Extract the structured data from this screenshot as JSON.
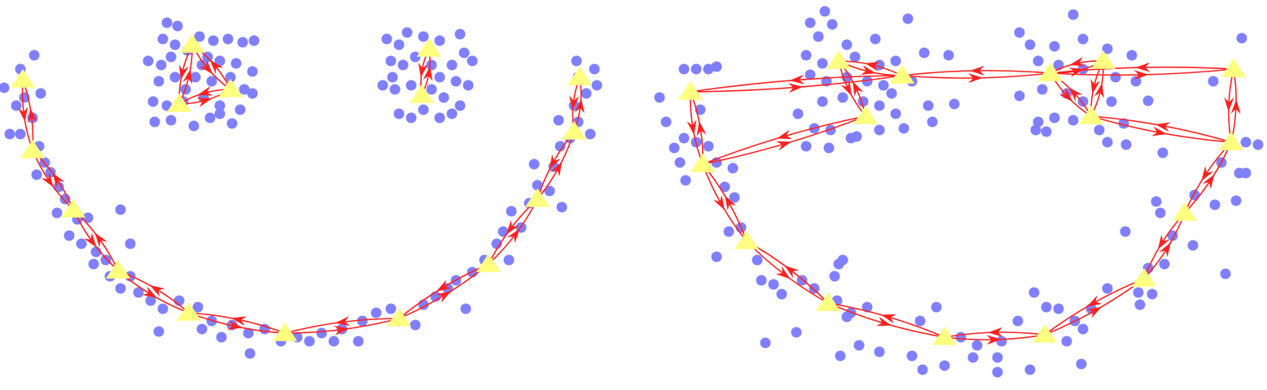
{
  "chart_data": [
    {
      "type": "scatter",
      "xlim": [
        0,
        778
      ],
      "ylim": [
        480,
        0
      ],
      "series": [
        {
          "color": "#8080ff",
          "marker": "circle",
          "x": [
            205,
            218,
            200,
            215,
            245,
            262,
            280,
            298,
            312,
            182,
            198,
            210,
            230,
            255,
            270,
            290,
            310,
            195,
            215,
            240,
            260,
            283,
            300,
            188,
            205,
            225,
            250,
            270,
            295,
            310,
            190,
            210,
            238,
            258,
            285,
            270,
            228,
            248,
            475,
            490,
            500,
            520,
            540,
            565,
            580,
            570,
            555,
            480,
            495,
            510,
            540,
            560,
            575,
            470,
            485,
            505,
            530,
            545,
            565,
            490,
            505,
            520,
            540,
            555,
            482,
            530,
            25,
            42,
            5,
            20,
            30,
            50,
            12,
            25,
            40,
            48,
            55,
            62,
            45,
            72,
            80,
            70,
            95,
            108,
            85,
            100,
            118,
            115,
            130,
            135,
            148,
            160,
            170,
            185,
            200,
            195,
            220,
            243,
            248,
            260,
            272,
            285,
            305,
            307,
            325,
            345,
            365,
            380,
            395,
            410,
            420,
            440,
            445,
            462,
            480,
            510,
            520,
            535,
            550,
            572,
            560,
            580,
            595,
            610,
            625,
            618,
            640,
            628,
            650,
            660,
            675,
            690,
            656,
            680,
            688,
            700,
            686,
            710,
            725,
            705,
            720,
            733,
            730,
            708,
            710,
            148,
            160
          ],
          "values": [
            28,
            32,
            48,
            55,
            45,
            50,
            48,
            52,
            50,
            75,
            80,
            70,
            62,
            70,
            75,
            78,
            88,
            100,
            95,
            95,
            100,
            95,
            110,
            125,
            130,
            125,
            120,
            130,
            135,
            115,
            150,
            148,
            155,
            145,
            152,
            140,
            110,
            80,
            48,
            55,
            40,
            45,
            50,
            42,
            75,
            65,
            80,
            75,
            80,
            70,
            95,
            100,
            105,
            105,
            110,
            105,
            110,
            120,
            130,
            140,
            145,
            135,
            145,
            140,
            95,
            80,
            85,
            68,
            108,
            130,
            120,
            115,
            165,
            165,
            145,
            180,
            200,
            212,
            215,
            230,
            245,
            262,
            270,
            268,
            290,
            300,
            310,
            325,
            320,
            340,
            355,
            340,
            360,
            370,
            380,
            408,
            370,
            378,
            405,
            395,
            415,
            400,
            410,
            435,
            405,
            420,
            415,
            420,
            410,
            420,
            405,
            420,
            395,
            385,
            380,
            400,
            375,
            365,
            355,
            380,
            345,
            335,
            320,
            300,
            320,
            285,
            280,
            260,
            250,
            228,
            235,
            255,
            202,
            205,
            180,
            170,
            148,
            150,
            165,
            130,
            115,
            105,
            85,
            75,
            95,
            258,
            300
          ]
        },
        {
          "color": "#ffff80",
          "marker": "triangle",
          "line_color": "#ff2020",
          "x": [
            28,
            40,
            90,
            145,
            232,
            350,
            490,
            600,
            660,
            705,
            712,
            null,
            236,
            283,
            220,
            236,
            null,
            527,
            518
          ],
          "values": [
            98,
            185,
            258,
            333,
            385,
            410,
            392,
            325,
            245,
            162,
            95,
            null,
            55,
            110,
            128,
            55,
            null,
            60,
            117
          ]
        }
      ]
    },
    {
      "type": "scatter",
      "xlim": [
        778,
        1556
      ],
      "ylim": [
        480,
        0
      ],
      "series": [
        {
          "color": "#8080ff",
          "marker": "circle",
          "x": [
            995,
            1013,
            1022,
            1005,
            1040,
            1075,
            1115,
            990,
            1010,
            1050,
            1080,
            1100,
            1135,
            1165,
            995,
            1015,
            1040,
            1065,
            1085,
            1120,
            1140,
            1010,
            1035,
            1060,
            1080,
            1100,
            980,
            1000,
            1020,
            1045,
            1080,
            1110,
            1145,
            1172,
            990,
            1018,
            1052,
            1252,
            1265,
            1295,
            1318,
            1330,
            1360,
            1390,
            1275,
            1300,
            1330,
            1370,
            1395,
            1252,
            1280,
            1310,
            1330,
            1365,
            1410,
            1275,
            1295,
            1318,
            1350,
            1380,
            1272,
            1285,
            1360,
            1383,
            1428,
            1525,
            1490,
            1530,
            1545,
            1522,
            1530,
            1518,
            1492,
            1500,
            1467,
            1420,
            1425,
            1440,
            1465,
            1430,
            1410,
            1382,
            1505,
            1398,
            1415,
            1400,
            1360,
            1340,
            1320,
            1300,
            1285,
            1330,
            1328,
            1265,
            1310,
            1250,
            1230,
            1225,
            1200,
            1195,
            1225,
            1180,
            1160,
            1150,
            1130,
            1120,
            1133,
            1080,
            1065,
            1055,
            1032,
            1045,
            1040,
            1028,
            978,
            940,
            1000,
            985,
            960,
            950,
            935,
            930,
            1030,
            1035,
            1025,
            880,
            895,
            910,
            902,
            890,
            880,
            900,
            870,
            855,
            828,
            840,
            835,
            842,
            818,
            810,
            840,
            855,
            870,
            880,
            860,
            1270,
            1095
          ],
          "values": [
            28,
            14,
            30,
            45,
            55,
            48,
            23,
            68,
            78,
            70,
            80,
            75,
            65,
            68,
            92,
            100,
            95,
            100,
            105,
            100,
            130,
            125,
            120,
            125,
            130,
            140,
            140,
            158,
            160,
            170,
            160,
            158,
            150,
            128,
            180,
            182,
            168,
            40,
            55,
            57,
            18,
            48,
            60,
            68,
            75,
            80,
            85,
            95,
            100,
            118,
            110,
            115,
            125,
            125,
            124,
            150,
            145,
            148,
            160,
            152,
            160,
            162,
            175,
            178,
            188,
            47,
            100,
            175,
            178,
            213,
            213,
            247,
            252,
            200,
            240,
            248,
            262,
            290,
            302,
            325,
            330,
            285,
            337,
            360,
            362,
            375,
            355,
            380,
            395,
            380,
            378,
            405,
            448,
            455,
            420,
            395,
            420,
            440,
            425,
            440,
            458,
            415,
            450,
            378,
            395,
            438,
            455,
            433,
            378,
            425,
            438,
            385,
            390,
            370,
            409,
            422,
            355,
            345,
            362,
            350,
            345,
            320,
            325,
            320,
            340,
            316,
            285,
            280,
            243,
            230,
            200,
            207,
            180,
            175,
            182,
            170,
            200,
            222,
            150,
            120,
            85,
            85,
            85,
            82,
            135,
            360,
            115
          ]
        },
        {
          "color": "#ffff80",
          "marker": "triangle",
          "line_color": "#ff2020",
          "x": [
            1515,
            1512,
            1455,
            1405,
            1283,
            1160,
            1017,
            917,
            863,
            848,
            1108,
            1290,
            1515,
            null,
            863,
            1063,
            1030,
            1108,
            null,
            1512,
            1340,
            1290,
            1355,
            1340
          ],
          "values": [
            85,
            175,
            262,
            343,
            412,
            415,
            373,
            297,
            202,
            113,
            93,
            90,
            85,
            null,
            202,
            143,
            75,
            93,
            null,
            175,
            143,
            90,
            75,
            143
          ]
        }
      ]
    }
  ]
}
